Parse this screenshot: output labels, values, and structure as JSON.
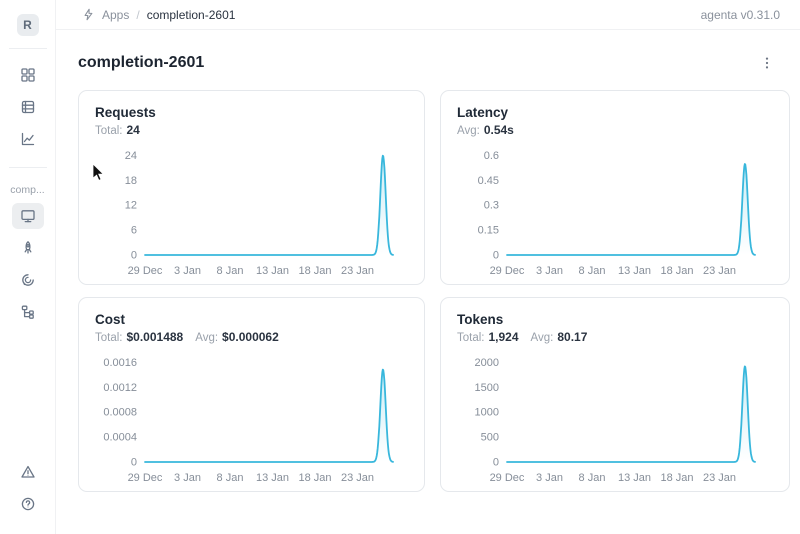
{
  "header": {
    "breadcrumb": {
      "section": "Apps",
      "separator": "/",
      "current": "completion-2601"
    },
    "version": "agenta v0.31.0"
  },
  "sidebar": {
    "avatar_letter": "R",
    "workspace_label": "comp..."
  },
  "page": {
    "title": "completion-2601"
  },
  "colors": {
    "accent_line": "#38b7dc"
  },
  "chart_data": [
    {
      "id": "requests",
      "type": "line",
      "title": "Requests",
      "stats": [
        {
          "label": "Total:",
          "value": "24"
        }
      ],
      "x": {
        "domain": [
          0,
          30
        ],
        "tick_days": [
          0,
          5,
          10,
          15,
          20,
          25
        ],
        "tick_labels": [
          "29 Dec",
          "3 Jan",
          "8 Jan",
          "13 Jan",
          "18 Jan",
          "23 Jan"
        ]
      },
      "y": {
        "lim": [
          0,
          24
        ],
        "ticks": [
          0,
          6,
          12,
          18,
          24
        ],
        "tick_labels": [
          "0",
          "6",
          "12",
          "18",
          "24"
        ]
      },
      "series": [
        {
          "name": "requests",
          "baseline": 0,
          "start_day": 0,
          "end_day": 29.2,
          "spike_day": 28,
          "spike_width": 0.45,
          "peak": 24
        }
      ]
    },
    {
      "id": "latency",
      "type": "line",
      "title": "Latency",
      "stats": [
        {
          "label": "Avg:",
          "value": "0.54s"
        }
      ],
      "x": {
        "domain": [
          0,
          30
        ],
        "tick_days": [
          0,
          5,
          10,
          15,
          20,
          25
        ],
        "tick_labels": [
          "29 Dec",
          "3 Jan",
          "8 Jan",
          "13 Jan",
          "18 Jan",
          "23 Jan"
        ]
      },
      "y": {
        "lim": [
          0,
          0.6
        ],
        "ticks": [
          0,
          0.15,
          0.3,
          0.45,
          0.6
        ],
        "tick_labels": [
          "0",
          "0.15",
          "0.3",
          "0.45",
          "0.6"
        ]
      },
      "series": [
        {
          "name": "latency",
          "baseline": 0,
          "start_day": 0,
          "end_day": 29.2,
          "spike_day": 28,
          "spike_width": 0.45,
          "peak": 0.55
        }
      ]
    },
    {
      "id": "cost",
      "type": "line",
      "title": "Cost",
      "stats": [
        {
          "label": "Total:",
          "value": "$0.001488"
        },
        {
          "label": "Avg:",
          "value": "$0.000062"
        }
      ],
      "x": {
        "domain": [
          0,
          30
        ],
        "tick_days": [
          0,
          5,
          10,
          15,
          20,
          25
        ],
        "tick_labels": [
          "29 Dec",
          "3 Jan",
          "8 Jan",
          "13 Jan",
          "18 Jan",
          "23 Jan"
        ]
      },
      "y": {
        "lim": [
          0,
          0.0016
        ],
        "ticks": [
          0,
          0.0004,
          0.0008,
          0.0012,
          0.0016
        ],
        "tick_labels": [
          "0",
          "0.0004",
          "0.0008",
          "0.0012",
          "0.0016"
        ]
      },
      "series": [
        {
          "name": "cost",
          "baseline": 0,
          "start_day": 0,
          "end_day": 29.2,
          "spike_day": 28,
          "spike_width": 0.45,
          "peak": 0.001488
        }
      ]
    },
    {
      "id": "tokens",
      "type": "line",
      "title": "Tokens",
      "stats": [
        {
          "label": "Total:",
          "value": "1,924"
        },
        {
          "label": "Avg:",
          "value": "80.17"
        }
      ],
      "x": {
        "domain": [
          0,
          30
        ],
        "tick_days": [
          0,
          5,
          10,
          15,
          20,
          25
        ],
        "tick_labels": [
          "29 Dec",
          "3 Jan",
          "8 Jan",
          "13 Jan",
          "18 Jan",
          "23 Jan"
        ]
      },
      "y": {
        "lim": [
          0,
          2000
        ],
        "ticks": [
          0,
          500,
          1000,
          1500,
          2000
        ],
        "tick_labels": [
          "0",
          "500",
          "1000",
          "1500",
          "2000"
        ]
      },
      "series": [
        {
          "name": "tokens",
          "baseline": 0,
          "start_day": 0,
          "end_day": 29.2,
          "spike_day": 28,
          "spike_width": 0.45,
          "peak": 1924
        }
      ]
    }
  ]
}
